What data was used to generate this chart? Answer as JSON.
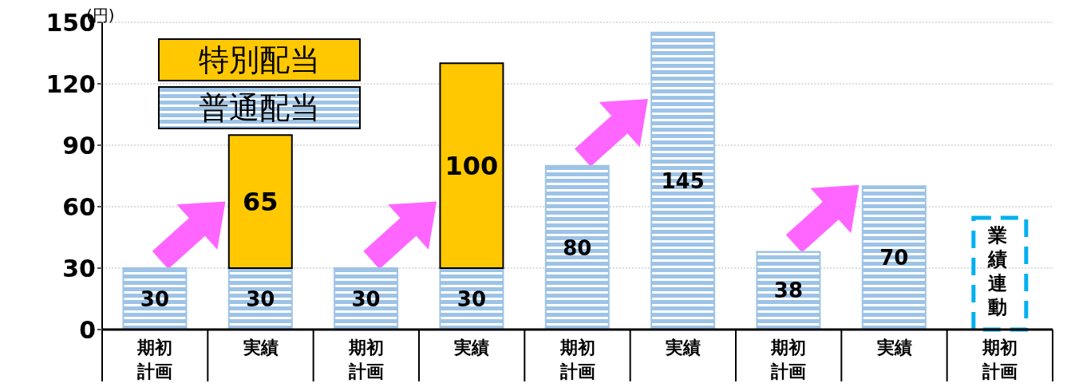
{
  "chart_data": {
    "type": "bar",
    "stacked": true,
    "ylabel": "(円)",
    "categories": [
      "期初計画",
      "実績",
      "期初計画",
      "実績",
      "期初計画",
      "実績",
      "期初計画",
      "実績",
      "期初計画"
    ],
    "series": [
      {
        "name": "普通配当",
        "color": "#9dc3e6",
        "values": [
          30,
          30,
          30,
          30,
          80,
          145,
          38,
          70,
          null
        ]
      },
      {
        "name": "特別配当",
        "color": "#ffc800",
        "values": [
          null,
          65,
          null,
          100,
          null,
          null,
          null,
          null,
          null
        ]
      }
    ],
    "ylim": [
      0,
      150
    ],
    "yticks": [
      0,
      30,
      60,
      90,
      120,
      150
    ],
    "grid": "y",
    "legend": "top left",
    "data_labels": true,
    "annotations": [
      "業績連動"
    ]
  }
}
